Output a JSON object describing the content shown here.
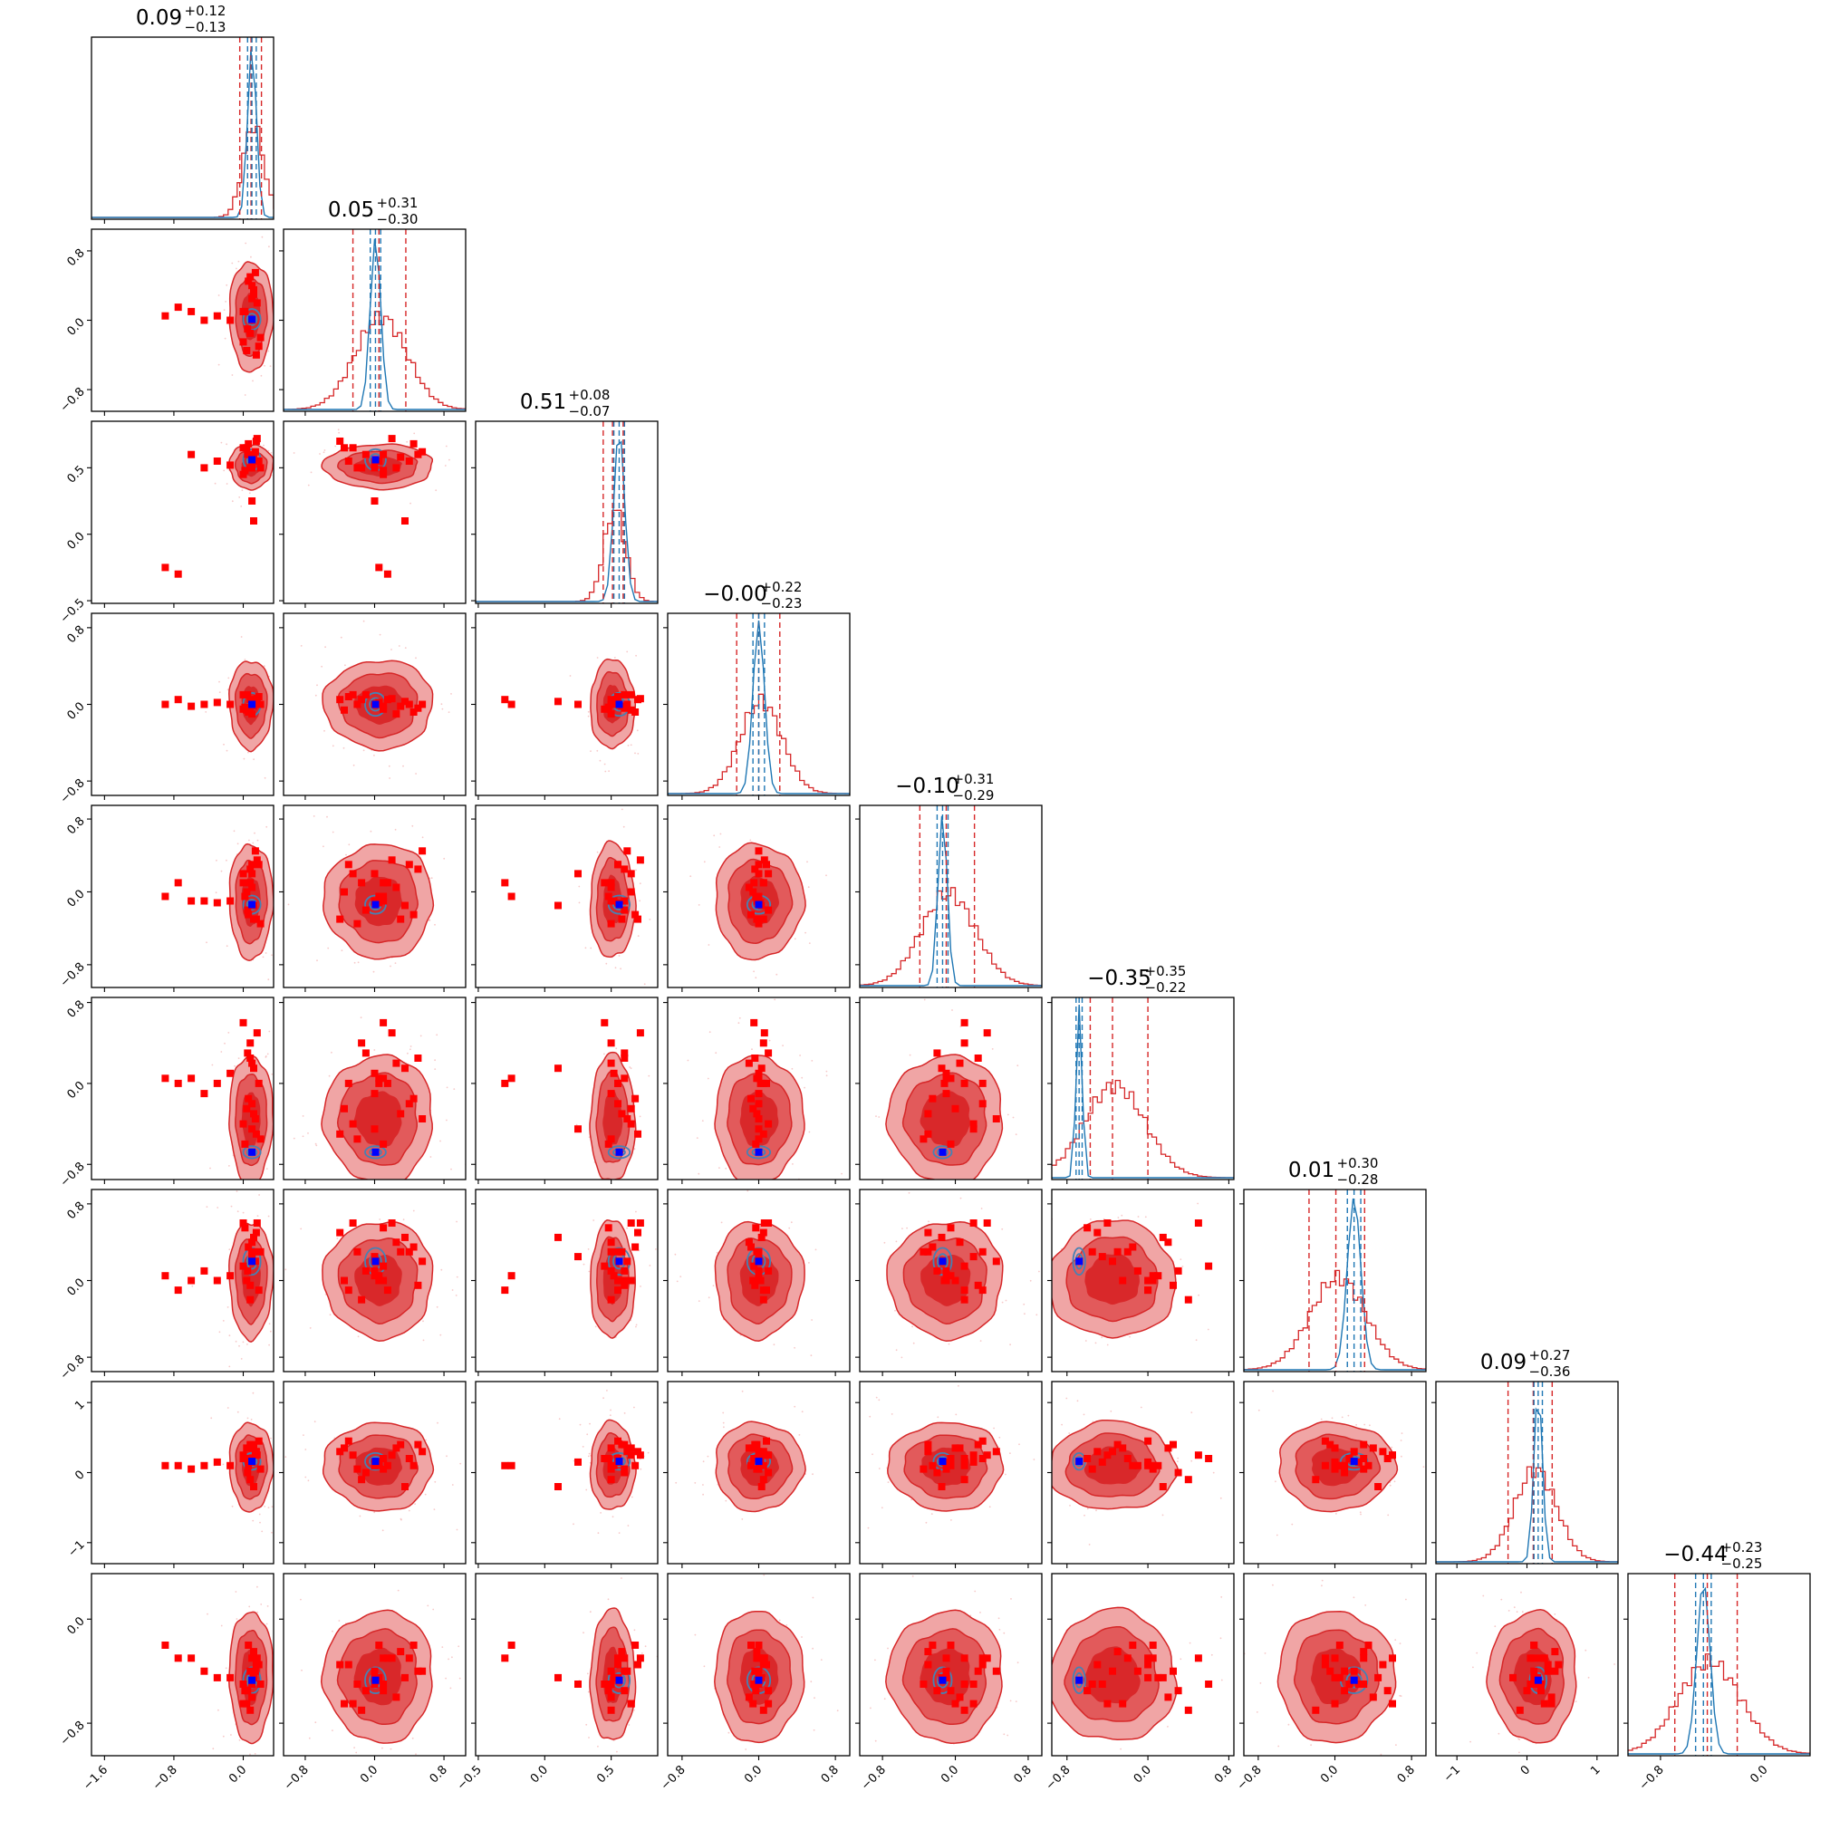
{
  "chart_data": {
    "type": "corner",
    "n_params": 9,
    "titles": [
      {
        "median": "0.09",
        "plus": "+0.12",
        "minus": "−0.13"
      },
      {
        "median": "0.05",
        "plus": "+0.31",
        "minus": "−0.30"
      },
      {
        "median": "0.51",
        "plus": "+0.08",
        "minus": "−0.07"
      },
      {
        "median": "−0.00",
        "plus": "+0.22",
        "minus": "−0.23"
      },
      {
        "median": "−0.10",
        "plus": "+0.31",
        "minus": "−0.29"
      },
      {
        "median": "−0.35",
        "plus": "+0.35",
        "minus": "−0.22"
      },
      {
        "median": "0.01",
        "plus": "+0.30",
        "minus": "−0.28"
      },
      {
        "median": "0.09",
        "plus": "+0.27",
        "minus": "−0.36"
      },
      {
        "median": "−0.44",
        "plus": "+0.23",
        "minus": "−0.25"
      }
    ],
    "ranges": [
      [
        -1.75,
        0.35
      ],
      [
        -1.05,
        1.05
      ],
      [
        -0.52,
        0.85
      ],
      [
        -0.95,
        0.95
      ],
      [
        -1.05,
        0.95
      ],
      [
        -0.95,
        0.85
      ],
      [
        -0.95,
        0.95
      ],
      [
        -1.3,
        1.3
      ],
      [
        -1.05,
        0.35
      ]
    ],
    "y_ticks": {
      "1": [
        {
          "v": 0.8,
          "label": "0.8"
        },
        {
          "v": 0.0,
          "label": "0.0"
        },
        {
          "v": -0.8,
          "label": "−0.8"
        }
      ],
      "2": [
        {
          "v": 0.5,
          "label": "0.5"
        },
        {
          "v": 0.0,
          "label": "0.0"
        },
        {
          "v": -0.5,
          "label": "−0.5"
        }
      ],
      "3": [
        {
          "v": 0.8,
          "label": "0.8"
        },
        {
          "v": 0.0,
          "label": "0.0"
        },
        {
          "v": -0.8,
          "label": "−0.8"
        }
      ],
      "4": [
        {
          "v": 0.8,
          "label": "0.8"
        },
        {
          "v": 0.0,
          "label": "0.0"
        },
        {
          "v": -0.8,
          "label": "−0.8"
        }
      ],
      "5": [
        {
          "v": 0.8,
          "label": "0.8"
        },
        {
          "v": 0.0,
          "label": "0.0"
        },
        {
          "v": -0.8,
          "label": "−0.8"
        }
      ],
      "6": [
        {
          "v": 0.8,
          "label": "0.8"
        },
        {
          "v": 0.0,
          "label": "0.0"
        },
        {
          "v": -0.8,
          "label": "−0.8"
        }
      ],
      "7": [
        {
          "v": 1,
          "label": "1"
        },
        {
          "v": 0,
          "label": "0"
        },
        {
          "v": -1,
          "label": "−1"
        }
      ],
      "8": [
        {
          "v": 0.0,
          "label": "0.0"
        },
        {
          "v": -0.8,
          "label": "−0.8"
        }
      ]
    },
    "x_ticks": [
      [
        {
          "v": -1.6,
          "label": "−1.6"
        },
        {
          "v": -0.8,
          "label": "−0.8"
        },
        {
          "v": 0.0,
          "label": "0.0"
        }
      ],
      [
        {
          "v": -0.8,
          "label": "−0.8"
        },
        {
          "v": 0.0,
          "label": "0.0"
        },
        {
          "v": 0.8,
          "label": "0.8"
        }
      ],
      [
        {
          "v": -0.5,
          "label": "−0.5"
        },
        {
          "v": 0.0,
          "label": "0.0"
        },
        {
          "v": 0.5,
          "label": "0.5"
        }
      ],
      [
        {
          "v": -0.8,
          "label": "−0.8"
        },
        {
          "v": 0.0,
          "label": "0.0"
        },
        {
          "v": 0.8,
          "label": "0.8"
        }
      ],
      [
        {
          "v": -0.8,
          "label": "−0.8"
        },
        {
          "v": 0.0,
          "label": "0.0"
        },
        {
          "v": 0.8,
          "label": "0.8"
        }
      ],
      [
        {
          "v": -0.8,
          "label": "−0.8"
        },
        {
          "v": 0.0,
          "label": "0.0"
        },
        {
          "v": 0.8,
          "label": "0.8"
        }
      ],
      [
        {
          "v": -0.8,
          "label": "−0.8"
        },
        {
          "v": 0.0,
          "label": "0.0"
        },
        {
          "v": 0.8,
          "label": "0.8"
        }
      ],
      [
        {
          "v": -1,
          "label": "−1"
        },
        {
          "v": 0,
          "label": "0"
        },
        {
          "v": 1,
          "label": "1"
        }
      ],
      [
        {
          "v": -0.8,
          "label": "−0.8"
        },
        {
          "v": 0.0,
          "label": "0.0"
        }
      ]
    ],
    "red_posterior": {
      "median": [
        0.09,
        0.05,
        0.51,
        0.0,
        -0.1,
        -0.35,
        0.01,
        0.09,
        -0.44
      ],
      "q16": [
        -0.04,
        -0.25,
        0.44,
        -0.23,
        -0.39,
        -0.57,
        -0.27,
        -0.27,
        -0.69
      ],
      "q84": [
        0.21,
        0.36,
        0.59,
        0.22,
        0.21,
        0.0,
        0.31,
        0.36,
        -0.21
      ],
      "sd": [
        0.12,
        0.3,
        0.08,
        0.22,
        0.3,
        0.3,
        0.29,
        0.3,
        0.24
      ]
    },
    "blue_posterior": {
      "median": [
        0.1,
        0.01,
        0.56,
        0.0,
        -0.14,
        -0.68,
        0.2,
        0.16,
        -0.47
      ],
      "sd": [
        0.05,
        0.06,
        0.04,
        0.06,
        0.05,
        0.03,
        0.07,
        0.06,
        0.05
      ],
      "q16": [
        0.05,
        -0.05,
        0.52,
        -0.06,
        -0.2,
        -0.71,
        0.13,
        0.1,
        -0.53
      ],
      "q84": [
        0.15,
        0.07,
        0.6,
        0.06,
        -0.08,
        -0.65,
        0.27,
        0.22,
        -0.41
      ]
    },
    "red_points": [
      [
        -0.9,
        0.05,
        -0.25,
        0.0,
        -0.05,
        0.05,
        0.05,
        0.1,
        -0.2
      ],
      [
        -0.75,
        0.15,
        -0.3,
        0.05,
        0.1,
        0.0,
        -0.1,
        0.1,
        -0.3
      ],
      [
        -0.6,
        0.1,
        0.6,
        -0.02,
        -0.1,
        0.05,
        0.0,
        0.05,
        -0.3
      ],
      [
        -0.45,
        0.0,
        0.5,
        0.0,
        -0.1,
        -0.1,
        0.1,
        0.1,
        -0.4
      ],
      [
        -0.3,
        0.05,
        0.55,
        0.02,
        -0.12,
        0.0,
        0.0,
        0.15,
        -0.45
      ],
      [
        -0.15,
        0.0,
        0.52,
        0.0,
        -0.1,
        0.1,
        0.05,
        0.1,
        -0.45
      ],
      [
        0.0,
        0.1,
        0.45,
        -0.05,
        0.1,
        0.6,
        0.15,
        0.2,
        -0.5
      ],
      [
        0.05,
        -0.1,
        0.6,
        0.1,
        -0.2,
        0.3,
        0.1,
        0.0,
        -0.55
      ],
      [
        0.1,
        0.4,
        0.55,
        0.0,
        0.3,
        -0.2,
        0.3,
        0.2,
        -0.3
      ],
      [
        0.15,
        -0.4,
        0.7,
        0.05,
        -0.3,
        -0.5,
        0.5,
        0.3,
        -0.35
      ],
      [
        0.1,
        0.25,
        0.5,
        -0.1,
        0.05,
        0.2,
        0.4,
        0.35,
        -0.6
      ],
      [
        0.0,
        -0.25,
        0.65,
        0.1,
        0.2,
        -0.4,
        0.6,
        0.25,
        -0.65
      ],
      [
        0.12,
        0.3,
        0.58,
        -0.02,
        -0.3,
        -0.3,
        0.3,
        0.4,
        -0.25
      ],
      [
        0.08,
        -0.15,
        0.5,
        0.05,
        0.1,
        0.4,
        -0.2,
        -0.1,
        -0.7
      ],
      [
        0.14,
        0.55,
        0.62,
        0.0,
        0.45,
        -0.35,
        0.2,
        0.3,
        -0.4
      ],
      [
        0.02,
        0.1,
        0.48,
        -0.03,
        -0.05,
        -0.6,
        0.55,
        0.2,
        -0.55
      ],
      [
        0.18,
        -0.3,
        0.55,
        0.08,
        0.3,
        0.0,
        -0.1,
        0.45,
        -0.35
      ],
      [
        0.06,
        0.45,
        0.68,
        -0.08,
        -0.25,
        -0.15,
        0.35,
        0.1,
        -0.2
      ],
      [
        0.1,
        0.0,
        0.25,
        0.0,
        0.2,
        -0.45,
        0.25,
        0.15,
        -0.5
      ],
      [
        0.12,
        0.35,
        0.1,
        0.03,
        -0.15,
        0.15,
        0.45,
        -0.2,
        -0.45
      ],
      [
        0.04,
        -0.35,
        0.65,
        -0.06,
        0.0,
        -0.25,
        0.0,
        0.35,
        -0.65
      ],
      [
        0.16,
        0.2,
        0.72,
        0.06,
        0.35,
        0.5,
        0.6,
        0.25,
        -0.3
      ],
      [
        0.2,
        -0.2,
        0.5,
        0.0,
        -0.35,
        -0.55,
        0.3,
        0.05,
        -0.5
      ],
      [
        0.08,
        0.5,
        0.6,
        -0.04,
        0.25,
        0.25,
        -0.05,
        0.4,
        -0.4
      ]
    ],
    "colors": {
      "red": "#d62728",
      "red_dense": "#d9282a",
      "red_mid": "#e25a5b",
      "red_light": "#f0a5a5",
      "red_marker": "#ff0000",
      "blue": "#1f77b4",
      "blue_contour": "#4682b4",
      "blue_marker": "#0000ff"
    }
  }
}
